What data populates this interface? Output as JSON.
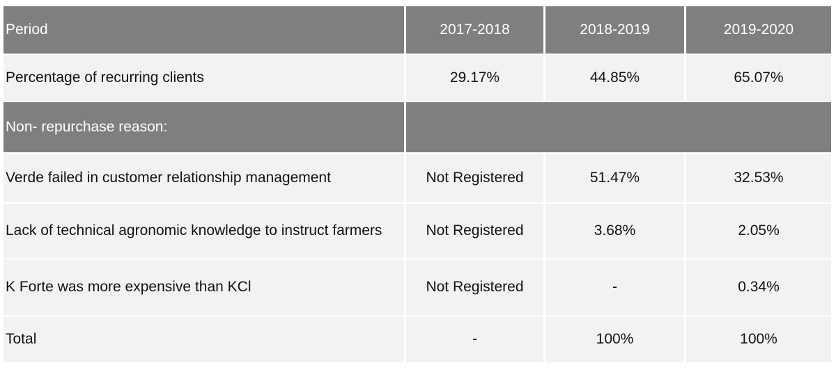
{
  "table": {
    "header": {
      "label": "Period",
      "years": [
        "2017-2018",
        "2018-2019",
        "2019-2020"
      ]
    },
    "recurring": {
      "label": "Percentage of recurring clients",
      "values": [
        "29.17%",
        "44.85%",
        "65.07%"
      ]
    },
    "section": {
      "label": "Non- repurchase reason:"
    },
    "rows": [
      {
        "label": "Verde failed in customer relationship management",
        "values": [
          "Not Registered",
          "51.47%",
          "32.53%"
        ]
      },
      {
        "label": "Lack of technical agronomic knowledge to instruct farmers",
        "values": [
          "Not Registered",
          "3.68%",
          "2.05%"
        ]
      },
      {
        "label": "K Forte was more expensive than KCl",
        "values": [
          "Not Registered",
          "-",
          "0.34%"
        ]
      }
    ],
    "total": {
      "label": "Total",
      "values": [
        "-",
        "100%",
        "100%"
      ]
    },
    "colors": {
      "header_bg": "#7f7f7f",
      "row_bg": "#f2f2f2"
    }
  }
}
